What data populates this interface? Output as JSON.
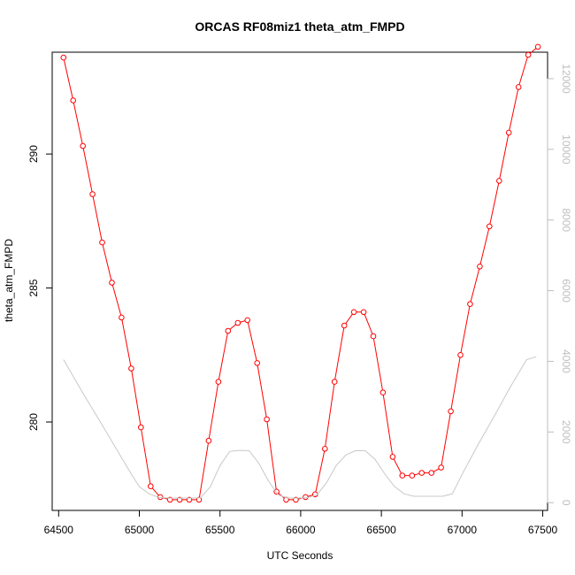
{
  "chart_data": {
    "type": "line",
    "title": "ORCAS RF08miz1 theta_atm_FMPD",
    "xlabel": "UTC Seconds",
    "ylabel": "theta_atm_FMPD",
    "xlim": [
      64460,
      67530
    ],
    "ylim": [
      276.7,
      293.8
    ],
    "y2lim": [
      -220,
      12750
    ],
    "x_ticks": [
      64500,
      65000,
      65500,
      66000,
      66500,
      67000,
      67500
    ],
    "y_ticks": [
      280,
      285,
      290
    ],
    "y2_ticks": [
      0,
      2000,
      4000,
      6000,
      8000,
      10000,
      12000
    ],
    "x_tick_labels": [
      "64500",
      "65000",
      "65500",
      "66000",
      "66500",
      "67000",
      "67500"
    ],
    "y_tick_labels": [
      "280",
      "285",
      "290"
    ],
    "y2_tick_labels": [
      "0",
      "2000",
      "4000",
      "6000",
      "8000",
      "10000",
      "12000"
    ],
    "colors": {
      "primary": "#ff0000",
      "secondary": "#c8c8c8",
      "axis": "#000000",
      "axis2": "#bebebe"
    },
    "series": [
      {
        "axis": "left",
        "marker": "open-circle",
        "x": [
          64530,
          64590,
          64650,
          64710,
          64770,
          64830,
          64890,
          64950,
          65010,
          65070,
          65130,
          65190,
          65250,
          65310,
          65370,
          65430,
          65490,
          65550,
          65610,
          65670,
          65730,
          65790,
          65850,
          65910,
          65970,
          66030,
          66090,
          66150,
          66210,
          66270,
          66330,
          66390,
          66450,
          66510,
          66570,
          66630,
          66690,
          66750,
          66810,
          66870,
          66930,
          66990,
          67050,
          67110,
          67170,
          67230,
          67290,
          67350,
          67410,
          67470
        ],
        "values": [
          293.6,
          292.0,
          290.3,
          288.5,
          286.7,
          285.2,
          283.9,
          282.0,
          279.8,
          277.6,
          277.2,
          277.1,
          277.1,
          277.1,
          277.1,
          279.3,
          281.5,
          283.4,
          283.7,
          283.8,
          282.2,
          280.1,
          277.4,
          277.1,
          277.1,
          277.2,
          277.3,
          279.0,
          281.5,
          283.6,
          284.1,
          284.1,
          283.2,
          281.1,
          278.7,
          278.0,
          278.0,
          278.1,
          278.1,
          278.3,
          280.4,
          282.5,
          284.4,
          285.8,
          287.3,
          289.0,
          290.8,
          292.5,
          293.7,
          294.0
        ]
      },
      {
        "axis": "right",
        "marker": "none",
        "x": [
          64530,
          64650,
          64750,
          64850,
          64950,
          65000,
          65060,
          65120,
          65180,
          65250,
          65320,
          65380,
          65440,
          65500,
          65560,
          65620,
          65680,
          65740,
          65800,
          65860,
          65920,
          65980,
          66040,
          66100,
          66160,
          66220,
          66280,
          66340,
          66400,
          66460,
          66520,
          66580,
          66640,
          66700,
          66760,
          66820,
          66880,
          66940,
          67000,
          67100,
          67200,
          67300,
          67400,
          67460
        ],
        "values": [
          4050,
          3100,
          2350,
          1580,
          810,
          450,
          250,
          150,
          130,
          130,
          130,
          140,
          450,
          1050,
          1450,
          1480,
          1470,
          1120,
          620,
          220,
          130,
          130,
          140,
          220,
          560,
          1050,
          1350,
          1470,
          1470,
          1230,
          820,
          460,
          250,
          180,
          180,
          180,
          180,
          250,
          800,
          1650,
          2450,
          3280,
          4050,
          4130
        ]
      }
    ]
  }
}
